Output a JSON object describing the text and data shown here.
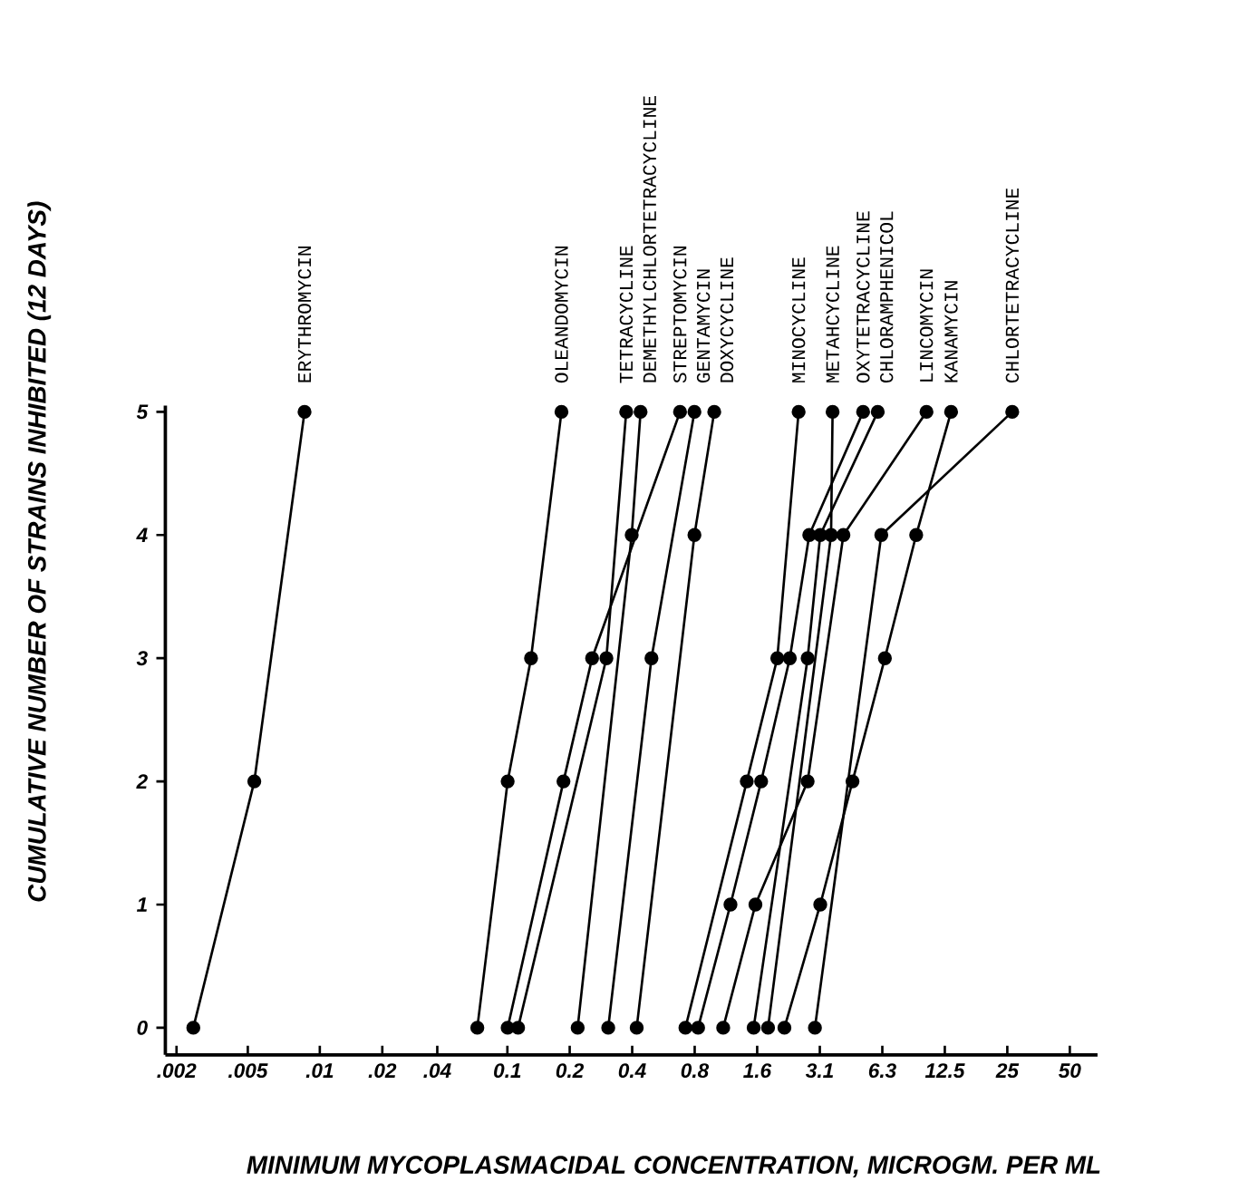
{
  "chart_data": {
    "type": "line",
    "xlabel": "MINIMUM  MYCOPLASMACIDAL  CONCENTRATION, MICROGM.  PER ML",
    "ylabel": "CUMULATIVE  NUMBER  OF  STRAINS  INHIBITED  (12 DAYS)",
    "log": "x",
    "xlim": [
      0.0022,
      68
    ],
    "ylim": [
      -0.22,
      5.05
    ],
    "xticks": [
      {
        "value": 0.00249,
        "label": ".002"
      },
      {
        "value": 0.00549,
        "label": ".005"
      },
      {
        "value": 0.0122,
        "label": ".01"
      },
      {
        "value": 0.0244,
        "label": ".02"
      },
      {
        "value": 0.0449,
        "label": ".04"
      },
      {
        "value": 0.0977,
        "label": "0.1"
      },
      {
        "value": 0.195,
        "label": "0.2"
      },
      {
        "value": 0.39,
        "label": "0.4"
      },
      {
        "value": 0.78,
        "label": "0.8"
      },
      {
        "value": 1.56,
        "label": "1.6"
      },
      {
        "value": 3.125,
        "label": "3.1"
      },
      {
        "value": 6.25,
        "label": "6.3"
      },
      12.5,
      25,
      50
    ],
    "yticks": [
      0,
      1,
      2,
      3,
      4,
      5
    ],
    "marker": "circle",
    "line_style": "solid",
    "series": [
      {
        "name": "ERYTHROMYCIN",
        "color": "#000000",
        "x": [
          0.003,
          0.0059,
          0.0103
        ],
        "values": [
          0,
          2,
          5
        ]
      },
      {
        "name": "OLEANDOMYCIN",
        "color": "#000000",
        "x": [
          0.07,
          0.098,
          0.127,
          0.178
        ],
        "values": [
          0,
          2,
          3,
          5
        ]
      },
      {
        "name": "TETRACYCLINE",
        "color": "#000000",
        "x": [
          0.11,
          0.293,
          0.365
        ],
        "values": [
          0,
          3,
          5
        ]
      },
      {
        "name": "DEMETHYLCHLORTETRACYCLINE",
        "color": "#000000",
        "x": [
          0.213,
          0.388,
          0.428
        ],
        "values": [
          0,
          4,
          5
        ]
      },
      {
        "name": "STREPTOMYCIN",
        "color": "#000000",
        "x": [
          0.098,
          0.182,
          0.25,
          0.663
        ],
        "values": [
          0,
          2,
          3,
          5
        ]
      },
      {
        "name": "GENTAMYCIN",
        "color": "#000000",
        "x": [
          0.299,
          0.483,
          0.778
        ],
        "values": [
          0,
          3,
          5
        ]
      },
      {
        "name": "DOXYCYCLINE",
        "color": "#000000",
        "x": [
          0.41,
          0.778,
          0.969
        ],
        "values": [
          0,
          4,
          5
        ]
      },
      {
        "name": "MINOCYCLINE",
        "color": "#000000",
        "x": [
          0.704,
          1.39,
          1.95,
          2.47
        ],
        "values": [
          0,
          2,
          3,
          5
        ]
      },
      {
        "name": "METAHCYCLINE",
        "color": "#000000",
        "x": [
          1.76,
          3.54,
          3.6
        ],
        "values": [
          0,
          4,
          5
        ]
      },
      {
        "name": "OXYTETRACYCLINE",
        "color": "#000000",
        "x": [
          0.81,
          1.16,
          1.63,
          2.24,
          2.78,
          5.05
        ],
        "values": [
          0,
          1,
          2,
          3,
          4,
          5
        ]
      },
      {
        "name": "CHLORAMPHENICOL",
        "color": "#000000",
        "x": [
          1.5,
          2.73,
          3.14,
          5.94
        ],
        "values": [
          0,
          3,
          4,
          5
        ]
      },
      {
        "name": "LINCOMYCIN",
        "color": "#000000",
        "x": [
          1.07,
          1.53,
          2.73,
          4.06,
          10.2
        ],
        "values": [
          0,
          1,
          2,
          4,
          5
        ]
      },
      {
        "name": "KANAMYCIN",
        "color": "#000000",
        "x": [
          2.11,
          3.14,
          4.49,
          6.43,
          9.1,
          13.4
        ],
        "values": [
          0,
          1,
          2,
          3,
          4,
          5
        ]
      },
      {
        "name": "CHLORTETRACYCLINE",
        "color": "#000000",
        "x": [
          2.96,
          6.18,
          26.4
        ],
        "values": [
          0,
          4,
          5
        ]
      }
    ]
  }
}
